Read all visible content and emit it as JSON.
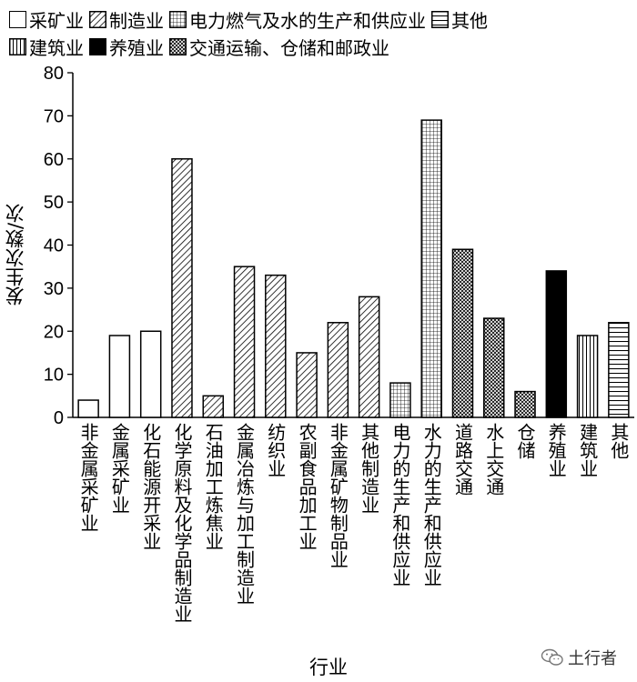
{
  "chart_data": {
    "type": "bar",
    "xlabel": "行业",
    "ylabel": "发生次数/次",
    "ylim": [
      0,
      80
    ],
    "yticks": [
      0,
      10,
      20,
      30,
      40,
      50,
      60,
      70,
      80
    ],
    "grid": false,
    "legend_position": "top",
    "categories": [
      "非金属采矿业",
      "金属采矿业",
      "化石能源开采业",
      "化学原料及化学品制造业",
      "石油加工炼焦业",
      "金属冶炼与加工制造业",
      "纺织业",
      "农副食品加工业",
      "非金属矿物制品业",
      "其他制造业",
      "电力的生产和供应业",
      "水力的生产和供应业",
      "道路交通",
      "水上交通",
      "仓储",
      "养殖业",
      "建筑业",
      "其他"
    ],
    "values": [
      4,
      19,
      20,
      60,
      5,
      35,
      33,
      15,
      22,
      28,
      8,
      69,
      39,
      23,
      6,
      34,
      19,
      22
    ],
    "groups": [
      "采矿业",
      "采矿业",
      "采矿业",
      "制造业",
      "制造业",
      "制造业",
      "制造业",
      "制造业",
      "制造业",
      "制造业",
      "电力燃气及水的生产和供应业",
      "电力燃气及水的生产和供应业",
      "交通运输、仓储和邮政业",
      "交通运输、仓储和邮政业",
      "交通运输、仓储和邮政业",
      "养殖业",
      "建筑业",
      "其他"
    ],
    "legend": [
      {
        "name": "采矿业",
        "pattern": "empty"
      },
      {
        "name": "制造业",
        "pattern": "diagonal"
      },
      {
        "name": "电力燃气及水的生产和供应业",
        "pattern": "grid"
      },
      {
        "name": "其他",
        "pattern": "horizontal"
      },
      {
        "name": "建筑业",
        "pattern": "vertical"
      },
      {
        "name": "养殖业",
        "pattern": "solid"
      },
      {
        "name": "交通运输、仓储和邮政业",
        "pattern": "crosshatch"
      }
    ]
  },
  "watermark": {
    "text": "土行者",
    "icon": "wechat-icon"
  }
}
